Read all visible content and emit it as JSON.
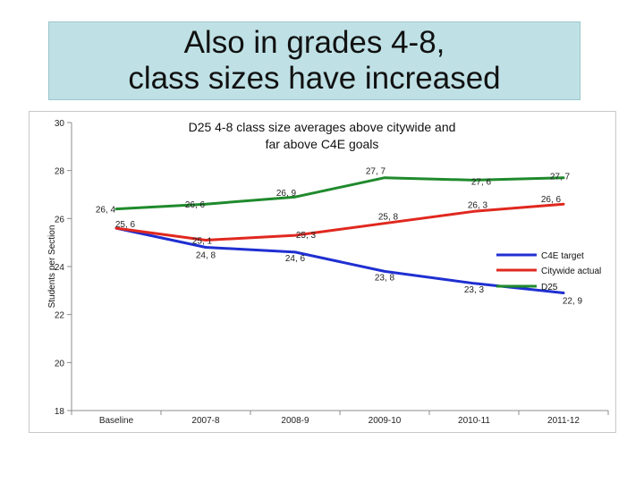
{
  "slide": {
    "title_line1": "Also in grades 4-8,",
    "title_line2": "class sizes have increased"
  },
  "colors": {
    "title_bg": "#bfe1e5",
    "c4e": "#1f2fd1",
    "citywide": "#e0281f",
    "d25": "#1f8a2c"
  },
  "chart_data": {
    "type": "line",
    "title": "D25 4-8 class size averages above citywide and far above C4E goals",
    "title_line1": "D25 4-8 class size averages above citywide and",
    "title_line2": "far above C4E goals",
    "xlabel": "",
    "ylabel": "Students per Section",
    "categories": [
      "Baseline",
      "2007-8",
      "2008-9",
      "2009-10",
      "2010-11",
      "2011-12"
    ],
    "ylim": [
      18,
      30
    ],
    "yticks": [
      "18",
      "20",
      "22",
      "24",
      "26",
      "28",
      "30"
    ],
    "grid": false,
    "legend_position": "right",
    "series": [
      {
        "name": "C4E target",
        "color": "#1f2fd1",
        "values": [
          25.6,
          24.8,
          24.6,
          23.8,
          23.3,
          22.9
        ],
        "labels": [
          "25, 6",
          "24, 8",
          "24, 6",
          "23, 8",
          "23, 3",
          "22, 9"
        ]
      },
      {
        "name": "Citywide actual",
        "color": "#e0281f",
        "values": [
          25.6,
          25.1,
          25.3,
          25.8,
          26.3,
          26.6
        ],
        "labels": [
          "",
          "25, 1",
          "25, 3",
          "25, 8",
          "26, 3",
          "26, 6"
        ]
      },
      {
        "name": "D25",
        "color": "#1f8a2c",
        "values": [
          26.4,
          26.6,
          26.9,
          27.7,
          27.6,
          27.7
        ],
        "labels": [
          "26, 4",
          "26, 6",
          "26, 9",
          "27, 7",
          "27, 6",
          "27, 7"
        ]
      }
    ]
  }
}
